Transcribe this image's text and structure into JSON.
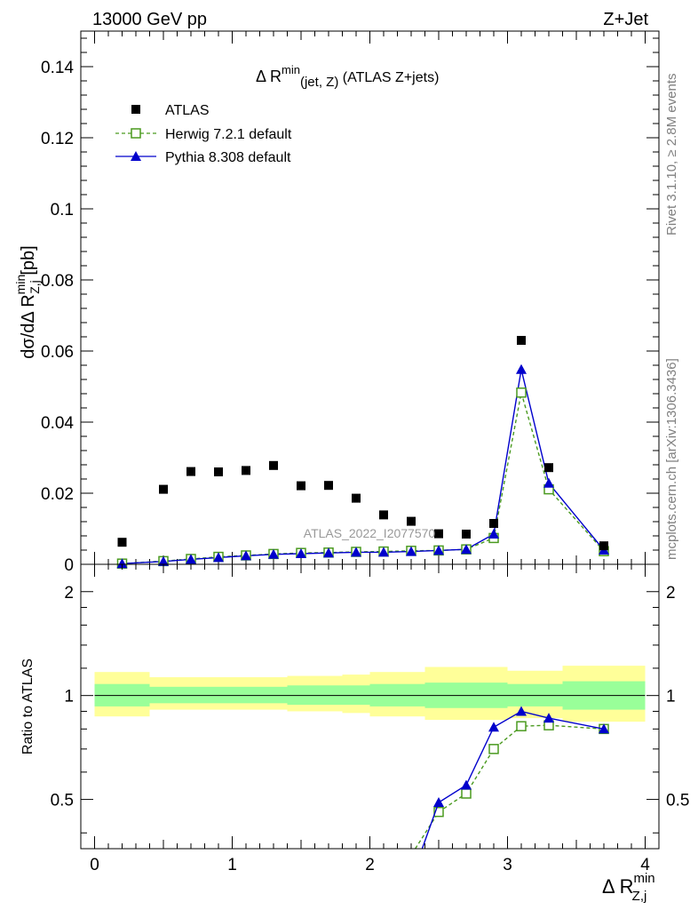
{
  "header": {
    "left": "13000 GeV pp",
    "right": "Z+Jet"
  },
  "top_panel": {
    "title_main": "Δ R",
    "title_sup": "min",
    "title_sub": "(jet, Z)",
    "title_suffix": " (ATLAS Z+jets)",
    "ylabel_pre": "dσ/dΔ R",
    "ylabel_sup": "min",
    "ylabel_sub": "Z,j",
    "ylabel_unit": " [pb]",
    "watermark": "ATLAS_2022_I2077570",
    "yticks": [
      "0",
      "0.02",
      "0.04",
      "0.06",
      "0.08",
      "0.1",
      "0.12",
      "0.14"
    ]
  },
  "bottom_panel": {
    "ylabel": "Ratio to ATLAS",
    "yticks": [
      "0.5",
      "1",
      "2"
    ]
  },
  "xaxis": {
    "label_pre": "Δ R",
    "label_sup": "min",
    "label_sub": "Z,j",
    "ticks": [
      "0",
      "1",
      "2",
      "3",
      "4"
    ]
  },
  "side": {
    "rivet": "Rivet 3.1.10, ≥ 2.8M events",
    "mcplots": "mcplots.cern.ch [arXiv:1306.3436]"
  },
  "legend": [
    {
      "label": "ATLAS",
      "color": "#000000",
      "marker": "filled-square"
    },
    {
      "label": "Herwig 7.2.1 default",
      "color": "#4a9a1f",
      "marker": "open-square",
      "line": "dashed"
    },
    {
      "label": "Pythia 8.308 default",
      "color": "#0000cc",
      "marker": "filled-triangle",
      "line": "solid"
    }
  ],
  "chart_data": [
    {
      "type": "scatter",
      "panel": "main",
      "xlim": [
        -0.1,
        4.1
      ],
      "ylim": [
        0,
        0.15
      ],
      "x": [
        0.2,
        0.5,
        0.7,
        0.9,
        1.1,
        1.3,
        1.5,
        1.7,
        1.9,
        2.1,
        2.3,
        2.5,
        2.7,
        2.9,
        3.1,
        3.3,
        3.7
      ],
      "series": [
        {
          "name": "ATLAS",
          "values": [
            0.0062,
            0.0211,
            0.0261,
            0.026,
            0.0264,
            0.0278,
            0.0221,
            0.0222,
            0.0186,
            0.0139,
            0.0121,
            0.0086,
            0.0085,
            0.0115,
            0.063,
            0.0272,
            0.0052
          ]
        },
        {
          "name": "Herwig 7.2.1 default",
          "values": [
            0.0002,
            0.0009,
            0.0015,
            0.0021,
            0.0025,
            0.0029,
            0.0032,
            0.0033,
            0.0035,
            0.0036,
            0.0038,
            0.0039,
            0.0042,
            0.0074,
            0.0483,
            0.0211,
            0.0037
          ]
        },
        {
          "name": "Pythia 8.308 default",
          "values": [
            0.0002,
            0.0008,
            0.0014,
            0.0019,
            0.0024,
            0.0028,
            0.003,
            0.0032,
            0.0034,
            0.0034,
            0.0036,
            0.0039,
            0.0042,
            0.0085,
            0.0548,
            0.0228,
            0.004
          ]
        }
      ]
    },
    {
      "type": "line",
      "panel": "ratio",
      "yscale": "log",
      "ylim": [
        0.36,
        2.4
      ],
      "xlim": [
        -0.1,
        4.1
      ],
      "reference": 1,
      "bands": {
        "edges": [
          0.0,
          0.4,
          0.6,
          0.8,
          1.0,
          1.2,
          1.4,
          1.6,
          1.8,
          2.0,
          2.2,
          2.4,
          2.6,
          2.8,
          3.0,
          3.2,
          3.4,
          4.0
        ],
        "inner_lo": [
          0.93,
          0.95,
          0.95,
          0.95,
          0.95,
          0.95,
          0.94,
          0.94,
          0.94,
          0.93,
          0.93,
          0.92,
          0.92,
          0.92,
          0.93,
          0.93,
          0.91
        ],
        "inner_hi": [
          1.08,
          1.06,
          1.06,
          1.06,
          1.06,
          1.06,
          1.07,
          1.07,
          1.07,
          1.08,
          1.08,
          1.09,
          1.09,
          1.09,
          1.08,
          1.08,
          1.1
        ],
        "outer_lo": [
          0.87,
          0.91,
          0.91,
          0.91,
          0.91,
          0.91,
          0.9,
          0.9,
          0.89,
          0.87,
          0.87,
          0.85,
          0.85,
          0.85,
          0.86,
          0.86,
          0.84
        ],
        "outer_hi": [
          1.17,
          1.13,
          1.13,
          1.13,
          1.13,
          1.13,
          1.14,
          1.14,
          1.15,
          1.17,
          1.17,
          1.21,
          1.21,
          1.21,
          1.18,
          1.18,
          1.22
        ],
        "inner_color": "#99ff99",
        "outer_color": "#ffff99"
      },
      "series": [
        {
          "name": "Herwig 7.2.1 default",
          "x": [
            2.5,
            2.7,
            2.9,
            3.1,
            3.3,
            3.7
          ],
          "values": [
            0.46,
            0.52,
            0.7,
            0.815,
            0.82,
            0.8
          ],
          "below_range_from": 2.33
        },
        {
          "name": "Pythia 8.308 default",
          "x": [
            2.5,
            2.7,
            2.9,
            3.1,
            3.3,
            3.7
          ],
          "values": [
            0.49,
            0.55,
            0.81,
            0.9,
            0.86,
            0.8
          ],
          "below_range_from": 2.38
        }
      ]
    }
  ]
}
